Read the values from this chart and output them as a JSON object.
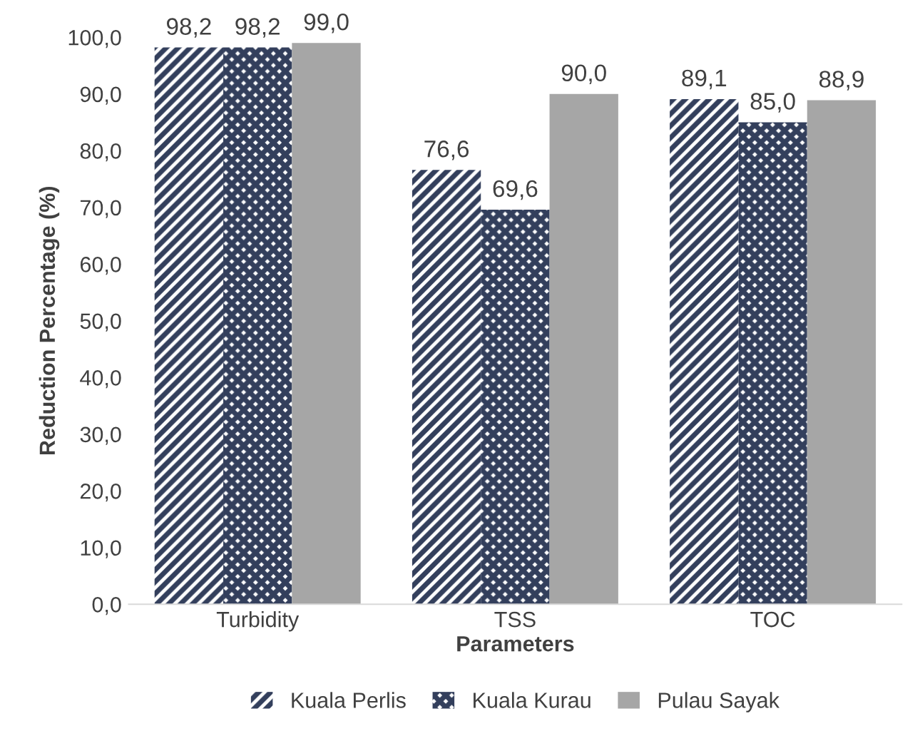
{
  "chart_data": {
    "type": "bar",
    "categories": [
      "Turbidity",
      "TSS",
      "TOC"
    ],
    "xlabel": "Parameters",
    "ylabel": "Reduction Percentage (%)",
    "ylim": [
      0,
      100
    ],
    "yticks": [
      {
        "value": 0,
        "label": "0,0"
      },
      {
        "value": 10,
        "label": "10,0"
      },
      {
        "value": 20,
        "label": "20,0"
      },
      {
        "value": 30,
        "label": "30,0"
      },
      {
        "value": 40,
        "label": "40,0"
      },
      {
        "value": 50,
        "label": "50,0"
      },
      {
        "value": 60,
        "label": "60,0"
      },
      {
        "value": 70,
        "label": "70,0"
      },
      {
        "value": 80,
        "label": "80,0"
      },
      {
        "value": 90,
        "label": "90,0"
      },
      {
        "value": 100,
        "label": "100,0"
      }
    ],
    "series": [
      {
        "name": "Kuala Perlis",
        "color": "#333f5c",
        "values": [
          98.2,
          76.6,
          89.1
        ],
        "value_labels": [
          "98,2",
          "76,6",
          "89,1"
        ]
      },
      {
        "name": "Kuala Kurau",
        "color": "#333f5c",
        "values": [
          98.2,
          69.6,
          85.0
        ],
        "value_labels": [
          "98,2",
          "69,6",
          "85,0"
        ]
      },
      {
        "name": "Pulau Sayak",
        "color": "#a6a6a6",
        "values": [
          99.0,
          90.0,
          88.9
        ],
        "value_labels": [
          "99,0",
          "90,0",
          "88,9"
        ]
      }
    ],
    "grid": false,
    "legend": "bottom"
  }
}
